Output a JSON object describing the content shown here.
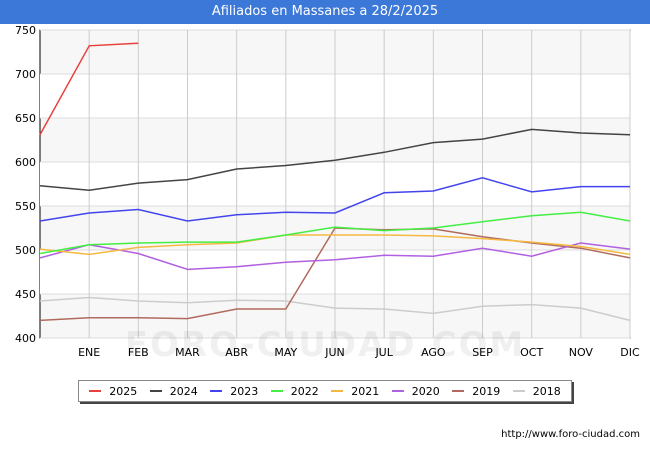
{
  "page": {
    "title": "Afiliados en Massanes a 28/2/2025",
    "source": "http://www.foro-ciudad.com",
    "watermark": "FORO-CIUDAD.COM"
  },
  "colors": {
    "title_bg": "#3c78d8",
    "plot_bg": "#f7f7f7",
    "grid": "#cccccc"
  },
  "chart_data": {
    "type": "line",
    "title": "Afiliados en Massanes a 28/2/2025",
    "categories": [
      "DIC_prev",
      "ENE",
      "FEB",
      "MAR",
      "ABR",
      "MAY",
      "JUN",
      "JUL",
      "AGO",
      "SEP",
      "OCT",
      "NOV",
      "DIC"
    ],
    "tick_labels": [
      "ENE",
      "FEB",
      "MAR",
      "ABR",
      "MAY",
      "JUN",
      "JUL",
      "AGO",
      "SEP",
      "OCT",
      "NOV",
      "DIC"
    ],
    "ylim": [
      400,
      750
    ],
    "yticks": [
      400,
      450,
      500,
      550,
      600,
      650,
      700,
      750
    ],
    "grid": true,
    "legend_position": "bottom",
    "series": [
      {
        "name": "2025",
        "color": "#e8413c",
        "values": [
          631,
          732,
          735,
          null,
          null,
          null,
          null,
          null,
          null,
          null,
          null,
          null,
          null
        ]
      },
      {
        "name": "2024",
        "color": "#444444",
        "values": [
          573,
          568,
          576,
          580,
          592,
          596,
          602,
          611,
          622,
          626,
          637,
          633,
          631
        ]
      },
      {
        "name": "2023",
        "color": "#4444ee",
        "values": [
          533,
          542,
          546,
          533,
          540,
          543,
          542,
          565,
          567,
          582,
          566,
          572,
          572
        ]
      },
      {
        "name": "2022",
        "color": "#44ee44",
        "values": [
          496,
          506,
          508,
          509,
          509,
          517,
          526,
          522,
          525,
          532,
          539,
          543,
          533
        ]
      },
      {
        "name": "2021",
        "color": "#f5b942",
        "values": [
          501,
          495,
          503,
          506,
          508,
          517,
          517,
          517,
          516,
          513,
          509,
          504,
          495
        ]
      },
      {
        "name": "2020",
        "color": "#b060e0",
        "values": [
          491,
          506,
          496,
          478,
          481,
          486,
          489,
          494,
          493,
          502,
          493,
          508,
          501
        ]
      },
      {
        "name": "2019",
        "color": "#b06b5e",
        "values": [
          420,
          423,
          423,
          422,
          433,
          433,
          525,
          523,
          524,
          515,
          508,
          502,
          491
        ]
      },
      {
        "name": "2018",
        "color": "#cccccc",
        "values": [
          442,
          446,
          442,
          440,
          443,
          442,
          434,
          433,
          428,
          436,
          438,
          434,
          420
        ]
      }
    ]
  }
}
